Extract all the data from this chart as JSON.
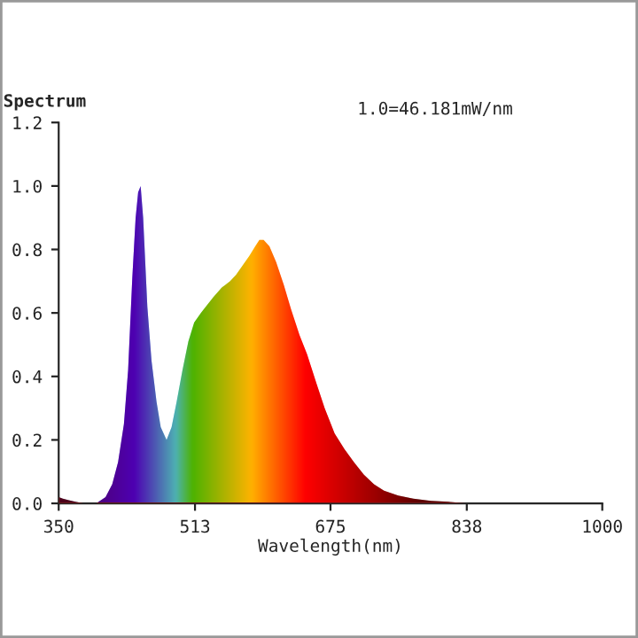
{
  "chart_data": {
    "type": "area",
    "ylabel": "Spectrum",
    "xlabel": "Wavelength(nm)",
    "annotations": [
      "1.0=46.181mW/nm"
    ],
    "x": [
      350,
      355,
      362,
      370,
      380,
      395,
      406,
      414,
      421,
      428,
      433,
      438,
      442,
      445,
      448,
      451,
      456,
      461,
      467,
      472,
      479,
      485,
      491,
      498,
      505,
      512,
      520,
      526,
      535,
      545,
      555,
      562,
      570,
      578,
      585,
      590,
      595,
      602,
      610,
      619,
      628,
      638,
      647,
      658,
      668,
      680,
      692,
      703,
      715,
      727,
      739,
      756,
      774,
      795,
      816,
      838,
      870,
      920,
      1000
    ],
    "series": [
      {
        "color": "#ff0000",
        "values": [
          0.02,
          0.015,
          0.01,
          0.005,
          0.0,
          0.0,
          0.02,
          0.06,
          0.13,
          0.25,
          0.42,
          0.71,
          0.9,
          0.98,
          1.0,
          0.9,
          0.62,
          0.45,
          0.32,
          0.24,
          0.2,
          0.24,
          0.32,
          0.42,
          0.51,
          0.57,
          0.6,
          0.62,
          0.65,
          0.68,
          0.7,
          0.72,
          0.75,
          0.78,
          0.81,
          0.83,
          0.83,
          0.81,
          0.76,
          0.69,
          0.61,
          0.53,
          0.47,
          0.38,
          0.3,
          0.22,
          0.17,
          0.13,
          0.09,
          0.06,
          0.04,
          0.025,
          0.015,
          0.008,
          0.005,
          0.0,
          0.0,
          0.0,
          0.0
        ]
      }
    ],
    "xlim": [
      350,
      1000
    ],
    "ylim": [
      0.0,
      1.2
    ],
    "xticks": [
      350,
      513,
      675,
      838,
      1000
    ],
    "yticks": [
      {
        "value": 0,
        "label": "0.0"
      },
      0.2,
      0.4,
      0.6,
      0.8,
      {
        "value": 1,
        "label": "1.0"
      },
      1.2
    ],
    "grid": false,
    "legend": false
  }
}
